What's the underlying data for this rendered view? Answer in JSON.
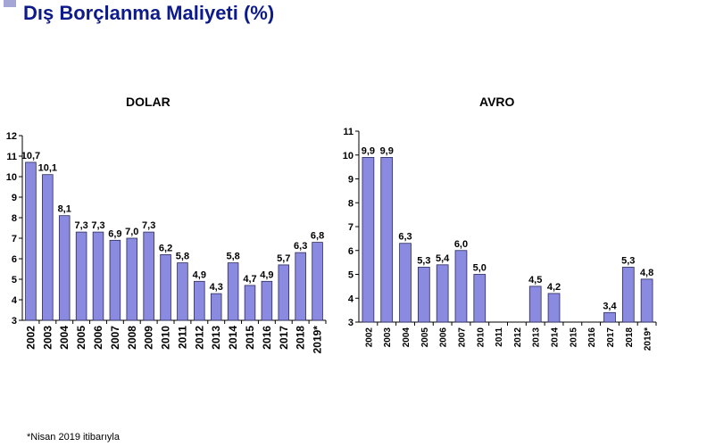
{
  "page": {
    "title": "Dış Borçlanma Maliyeti (%)",
    "footnote": "*Nisan 2019 itibarıyla",
    "accent_color": "#0d1a8a",
    "bar_color": "#8a8ae0"
  },
  "chart_data": [
    {
      "type": "bar",
      "title": "DOLAR",
      "categories": [
        "2002",
        "2003",
        "2004",
        "2005",
        "2006",
        "2007",
        "2008",
        "2009",
        "2010",
        "2011",
        "2012",
        "2013",
        "2014",
        "2015",
        "2016",
        "2017",
        "2018",
        "2019*"
      ],
      "values": [
        10.7,
        10.1,
        8.1,
        7.3,
        7.3,
        6.9,
        7.0,
        7.3,
        6.2,
        5.8,
        4.9,
        4.3,
        5.8,
        4.7,
        4.9,
        5.7,
        6.3,
        6.8
      ],
      "labels": [
        "10,7",
        "10,1",
        "8,1",
        "7,3",
        "7,3",
        "6,9",
        "7,0",
        "7,3",
        "6,2",
        "5,8",
        "4,9",
        "4,3",
        "5,8",
        "4,7",
        "4,9",
        "5,7",
        "6,3",
        "6,8"
      ],
      "ylim": [
        3,
        12
      ],
      "yticks": [
        "3",
        "4",
        "5",
        "6",
        "7",
        "8",
        "9",
        "10",
        "11",
        "12"
      ],
      "xlabel": "",
      "ylabel": ""
    },
    {
      "type": "bar",
      "title": "AVRO",
      "categories": [
        "2002",
        "2003",
        "2004",
        "2005",
        "2006",
        "2007",
        "2010",
        "2011",
        "2012",
        "2013",
        "2014",
        "2015",
        "2016",
        "2017",
        "2018",
        "2019*"
      ],
      "values": [
        9.9,
        9.9,
        6.3,
        5.3,
        5.4,
        6.0,
        5.0,
        null,
        null,
        4.5,
        4.2,
        null,
        null,
        3.4,
        5.3,
        4.8
      ],
      "labels": [
        "9,9",
        "9,9",
        "6,3",
        "5,3",
        "5,4",
        "6,0",
        "5,0",
        "",
        "",
        "4,5",
        "4,2",
        "",
        "",
        "3,4",
        "5,3",
        "4,8"
      ],
      "ylim": [
        3,
        11
      ],
      "yticks": [
        "3",
        "4",
        "5",
        "6",
        "7",
        "8",
        "9",
        "10",
        "11"
      ],
      "xlabel": "",
      "ylabel": ""
    }
  ]
}
